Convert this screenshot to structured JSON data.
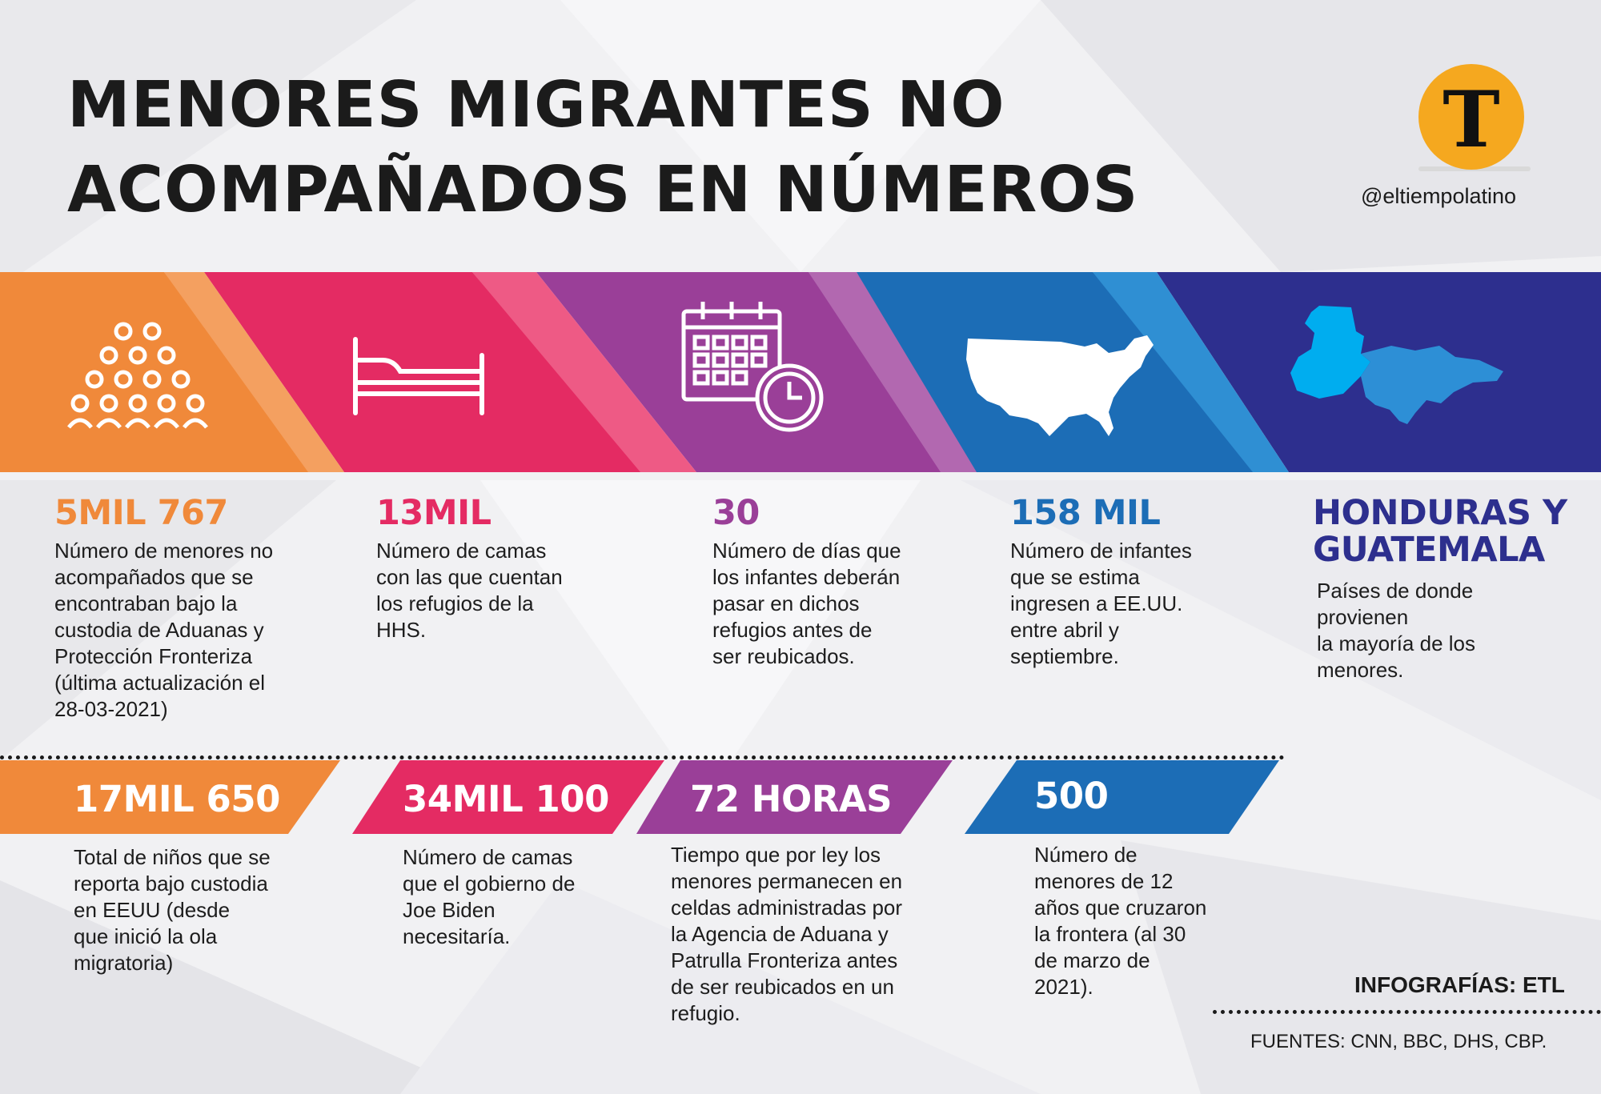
{
  "title": {
    "line1": "MENORES MIGRANTES NO",
    "line2": "ACOMPAÑADOS EN NÚMEROS"
  },
  "brand": {
    "logo_letter": "T",
    "handle": "@eltiempolatino"
  },
  "colors": {
    "orange": "#f0893a",
    "pink": "#e42b63",
    "purple": "#9a3f98",
    "blue": "#1c6db6",
    "navy": "#2d2f8e",
    "logo_gold": "#f5a81f"
  },
  "icons": [
    "people-group-icon",
    "bed-icon",
    "calendar-clock-icon",
    "usa-map-icon",
    "central-america-map-icon"
  ],
  "top_stats": [
    {
      "value": "5MIL 767",
      "desc": "Número de menores no\nacompañados que se\nencontraban  bajo la\ncustodia de Aduanas y\nProtección Fronteriza\n(última actualización el\n28-03-2021)"
    },
    {
      "value": "13MIL",
      "desc": "Número de camas\ncon las que cuentan\nlos refugios de la\nHHS."
    },
    {
      "value": "30",
      "desc": "Número de días que\nlos infantes deberán\npasar en dichos\nrefugios antes de\nser reubicados."
    },
    {
      "value": "158 MIL",
      "desc": "Número de infantes\nque se estima\ningresen a EE.UU.\nentre abril y\nseptiembre."
    },
    {
      "value_line1": "HONDURAS Y",
      "value_line2": "GUATEMALA",
      "desc": "Países de donde\nprovienen\nla mayoría de los\nmenores."
    }
  ],
  "bottom_stats": [
    {
      "value": "17MIL 650",
      "desc": "Total de niños que se\nreporta bajo custodia\nen EEUU (desde\nque inició la ola\nmigratoria)"
    },
    {
      "value": "34MIL 100",
      "desc": "Número de camas\nque el gobierno de\nJoe Biden\nnecesitaría."
    },
    {
      "value": "72 HORAS",
      "desc": "Tiempo que por ley los\nmenores permanecen en\nceldas administradas por\nla Agencia de Aduana y\nPatrulla Fronteriza antes\nde ser reubicados en un\nrefugio."
    },
    {
      "value": "500",
      "desc": "Número de\nmenores de 12\naños que cruzaron\nla frontera (al 30\nde marzo de\n2021)."
    }
  ],
  "footer": {
    "credit": "INFOGRAFÍAS: ETL",
    "sources": "FUENTES: CNN, BBC, DHS, CBP."
  }
}
